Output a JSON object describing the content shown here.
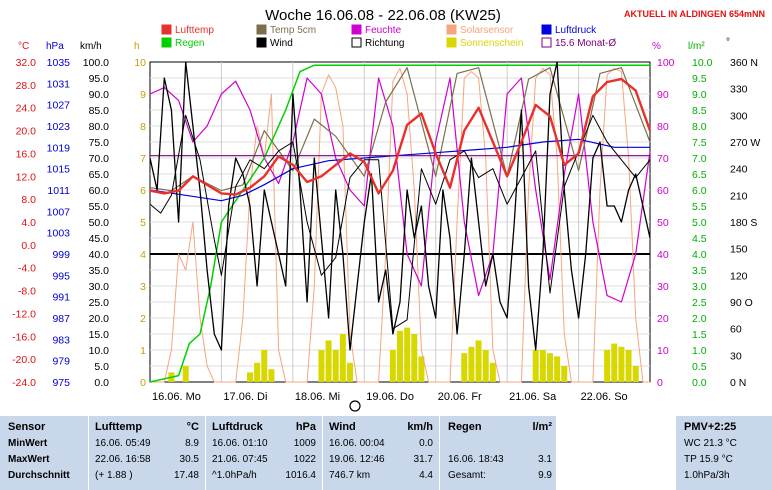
{
  "title": "Woche 16.06.08 - 22.06.08 (KW25)",
  "location_label": "AKTUELL IN ALDINGEN 654mNN",
  "axis_units": {
    "celsius": "°C",
    "hpa": "hPa",
    "kmh": "km/h",
    "h": "h",
    "percent": "%",
    "rain": "l/m²",
    "deg": "°"
  },
  "legend": [
    {
      "label": "Lufttemp",
      "color": "#e8302c",
      "style": "box"
    },
    {
      "label": "Temp 5cm",
      "color": "#7d6f4c",
      "style": "box"
    },
    {
      "label": "Feuchte",
      "color": "#d000d0",
      "style": "box"
    },
    {
      "label": "Solarsensor",
      "color": "#f6a57e",
      "style": "box"
    },
    {
      "label": "Luftdruck",
      "color": "#0000e0",
      "style": "box"
    },
    {
      "label": "Regen",
      "color": "#00d000",
      "style": "box"
    },
    {
      "label": "Wind",
      "color": "#000000",
      "style": "box"
    },
    {
      "label": "Richtung",
      "color": "#000000",
      "style": "outline"
    },
    {
      "label": "Sonnenschein",
      "color": "#d8d800",
      "style": "box"
    },
    {
      "label": "15.6 Monat-Ø",
      "color": "#800080",
      "style": "outline"
    }
  ],
  "chart_data": {
    "type": "line",
    "x_ticks": [
      "16.06. Mo",
      "17.06. Di",
      "18.06. Mi",
      "19.06. Do",
      "20.06. Fr",
      "21.06. Sa",
      "22.06. So"
    ],
    "axes": {
      "temp_c": {
        "min": -24,
        "max": 32,
        "ticks": [
          "32.0",
          "28.0",
          "24.0",
          "20.0",
          "16.0",
          "12.0",
          "8.0",
          "4.0",
          "0.0",
          "-4.0",
          "-8.0",
          "-12.0",
          "-16.0",
          "-20.0",
          "-24.0"
        ]
      },
      "pressure_hpa": {
        "min": 975,
        "max": 1035,
        "ticks": [
          "1035",
          "1031",
          "1027",
          "1023",
          "1019",
          "1015",
          "1011",
          "1007",
          "1003",
          "999",
          "995",
          "991",
          "987",
          "983",
          "979",
          "975"
        ]
      },
      "wind_kmh": {
        "min": 0,
        "max": 100,
        "ticks": [
          "100.0",
          "95.0",
          "90.0",
          "85.0",
          "80.0",
          "75.0",
          "70.0",
          "65.0",
          "60.0",
          "55.0",
          "50.0",
          "45.0",
          "40.0",
          "35.0",
          "30.0",
          "25.0",
          "20.0",
          "15.0",
          "10.0",
          "5.0",
          "0.0"
        ]
      },
      "sun_h": {
        "min": 0,
        "max": 10,
        "ticks": [
          "10",
          "9",
          "8",
          "7",
          "6",
          "5",
          "4",
          "3",
          "2",
          "1",
          "0"
        ]
      },
      "humidity_pct": {
        "min": 0,
        "max": 100,
        "ticks": [
          "100",
          "90",
          "80",
          "70",
          "60",
          "50",
          "40",
          "30",
          "20",
          "10",
          "0"
        ]
      },
      "rain_lm2": {
        "min": 0,
        "max": 10,
        "ticks": [
          "10.0",
          "9.5",
          "9.0",
          "8.5",
          "8.0",
          "7.5",
          "7.0",
          "6.5",
          "6.0",
          "5.5",
          "5.0",
          "4.5",
          "4.0",
          "3.5",
          "3.0",
          "2.5",
          "2.0",
          "1.5",
          "1.0",
          "0.5",
          "0.0"
        ]
      },
      "direction_deg": {
        "min": 0,
        "max": 360,
        "ticks": [
          "360 N",
          "330",
          "300",
          "270 W",
          "240",
          "210",
          "180 S",
          "150",
          "120",
          "90 O",
          "60",
          "30",
          "0 N"
        ]
      }
    },
    "series": [
      {
        "name": "Lufttemp",
        "axis": "temp_c",
        "color": "#e8302c",
        "x": [
          0,
          0.2,
          0.4,
          0.6,
          0.8,
          1,
          1.2,
          1.4,
          1.6,
          1.8,
          2,
          2.2,
          2.4,
          2.6,
          2.8,
          3,
          3.2,
          3.4,
          3.6,
          3.8,
          4,
          4.2,
          4.4,
          4.6,
          4.8,
          5,
          5.2,
          5.4,
          5.6,
          5.8,
          6,
          6.2,
          6.4,
          6.6,
          6.8,
          7
        ],
        "values": [
          9.5,
          9,
          9.5,
          12,
          10.5,
          9,
          8.8,
          10,
          12,
          15.5,
          14,
          11,
          12,
          14,
          16,
          14.5,
          9,
          13,
          21,
          23,
          16,
          10,
          20,
          24,
          18,
          12,
          18,
          24.5,
          22.5,
          14,
          16,
          26,
          28.5,
          29,
          27,
          20
        ]
      },
      {
        "name": "Temp 5cm",
        "axis": "temp_c",
        "color": "#7d6f4c",
        "x": [
          0,
          0.3,
          0.6,
          1,
          1.3,
          1.6,
          2,
          2.3,
          2.6,
          3,
          3.3,
          3.6,
          4,
          4.3,
          4.6,
          5,
          5.3,
          5.6,
          6,
          6.3,
          6.6,
          7
        ],
        "values": [
          10,
          9.5,
          12,
          9.5,
          10.5,
          20,
          13,
          22,
          19,
          12,
          25,
          31,
          12,
          30,
          31,
          12,
          29,
          31,
          13,
          30,
          31,
          18
        ]
      },
      {
        "name": "Feuchte",
        "axis": "humidity_pct",
        "color": "#d000d0",
        "x": [
          0,
          0.2,
          0.4,
          0.6,
          0.8,
          1,
          1.2,
          1.4,
          1.6,
          1.8,
          2,
          2.2,
          2.4,
          2.6,
          2.8,
          3,
          3.2,
          3.4,
          3.6,
          3.8,
          4,
          4.2,
          4.4,
          4.6,
          4.8,
          5,
          5.2,
          5.4,
          5.6,
          5.8,
          6,
          6.2,
          6.4,
          6.6,
          6.8,
          7
        ],
        "values": [
          90,
          92,
          88,
          75,
          80,
          90,
          94,
          85,
          70,
          62,
          75,
          95,
          90,
          70,
          60,
          55,
          95,
          80,
          40,
          30,
          75,
          95,
          50,
          27,
          40,
          90,
          95,
          60,
          32,
          65,
          90,
          50,
          27,
          25,
          40,
          72
        ]
      },
      {
        "name": "Solarsensor",
        "axis": "humidity_pct",
        "color": "#f6a57e",
        "x": [
          0,
          0.1,
          0.2,
          0.3,
          0.4,
          0.5,
          0.6,
          0.7,
          0.8,
          0.9,
          1,
          1.1,
          1.2,
          1.3,
          1.4,
          1.5,
          1.6,
          1.7,
          1.8,
          1.9,
          2,
          2.1,
          2.2,
          2.3,
          2.4,
          2.5,
          2.6,
          2.7,
          2.8,
          2.9,
          3,
          3.1,
          3.2,
          3.3,
          3.4,
          3.5,
          3.6,
          3.7,
          3.8,
          3.9,
          4,
          4.1,
          4.2,
          4.3,
          4.4,
          4.5,
          4.6,
          4.7,
          4.8,
          4.9,
          5,
          5.1,
          5.2,
          5.3,
          5.4,
          5.5,
          5.6,
          5.7,
          5.8,
          5.9,
          6,
          6.1,
          6.2,
          6.3,
          6.4,
          6.5,
          6.6,
          6.7,
          6.8,
          6.9,
          7
        ],
        "values": [
          0,
          0,
          0,
          10,
          40,
          35,
          50,
          20,
          5,
          0,
          0,
          0,
          0,
          20,
          60,
          80,
          70,
          90,
          10,
          0,
          0,
          0,
          0,
          30,
          90,
          96,
          92,
          80,
          15,
          0,
          0,
          0,
          0,
          40,
          94,
          98,
          90,
          60,
          10,
          0,
          0,
          0,
          0,
          50,
          95,
          97,
          95,
          70,
          10,
          0,
          0,
          0,
          0,
          60,
          95,
          98,
          96,
          70,
          15,
          0,
          0,
          0,
          0,
          60,
          96,
          98,
          97,
          70,
          20,
          0,
          0
        ]
      },
      {
        "name": "Luftdruck",
        "axis": "pressure_hpa",
        "color": "#0000e0",
        "x": [
          0,
          0.5,
          1,
          1.3,
          1.6,
          2,
          2.5,
          3,
          3.5,
          4,
          4.5,
          5,
          5.5,
          6,
          6.5,
          7
        ],
        "values": [
          1011,
          1010,
          1009,
          1010,
          1012,
          1015,
          1016.5,
          1017,
          1017.5,
          1018,
          1018.5,
          1019,
          1020,
          1020.5,
          1019,
          1019
        ]
      },
      {
        "name": "Regen",
        "axis": "rain_lm2",
        "color": "#00d000",
        "x": [
          0,
          0.2,
          0.4,
          0.55,
          0.7,
          0.85,
          1.0,
          1.3,
          1.6,
          1.9,
          2.1,
          2.3,
          3,
          4,
          5,
          6,
          7
        ],
        "values": [
          0,
          0.1,
          0.2,
          1.2,
          1.5,
          3,
          5,
          6,
          7,
          8.5,
          9.7,
          9.9,
          9.9,
          9.9,
          9.9,
          9.9,
          9.9
        ]
      },
      {
        "name": "Wind",
        "axis": "wind_kmh",
        "color": "#000000",
        "x": [
          0,
          0.1,
          0.2,
          0.3,
          0.4,
          0.5,
          0.6,
          0.7,
          0.8,
          0.9,
          1,
          1.1,
          1.2,
          1.3,
          1.4,
          1.5,
          1.6,
          1.7,
          1.8,
          1.9,
          2,
          2.1,
          2.2,
          2.3,
          2.4,
          2.5,
          2.6,
          2.7,
          2.8,
          2.9,
          3,
          3.1,
          3.2,
          3.3,
          3.4,
          3.5,
          3.6,
          3.7,
          3.8,
          3.9,
          4,
          4.1,
          4.2,
          4.3,
          4.4,
          4.5,
          4.6,
          4.7,
          4.8,
          4.9,
          5,
          5.1,
          5.2,
          5.3,
          5.4,
          5.5,
          5.6,
          5.7,
          5.8,
          5.9,
          6,
          6.1,
          6.2,
          6.3,
          6.4,
          6.5,
          6.6,
          6.7,
          6.8,
          6.9,
          7
        ],
        "values": [
          70,
          60,
          95,
          85,
          50,
          100,
          80,
          60,
          35,
          15,
          10,
          55,
          70,
          65,
          55,
          30,
          60,
          50,
          40,
          30,
          90,
          60,
          25,
          70,
          45,
          20,
          60,
          40,
          10,
          30,
          50,
          65,
          25,
          35,
          15,
          25,
          60,
          45,
          55,
          30,
          20,
          60,
          45,
          15,
          40,
          70,
          50,
          30,
          40,
          25,
          20,
          50,
          85,
          30,
          10,
          40,
          90,
          100,
          60,
          35,
          20,
          40,
          70,
          75,
          55,
          55,
          50,
          60,
          65,
          55,
          45
        ]
      },
      {
        "name": "Richtung",
        "axis": "direction_deg",
        "color": "#000000",
        "x": [
          0,
          0.15,
          0.3,
          0.5,
          0.7,
          0.9,
          1.0,
          1.2,
          1.4,
          1.6,
          1.8,
          2.0,
          2.2,
          2.4,
          2.6,
          2.8,
          3.0,
          3.2,
          3.4,
          3.6,
          3.8,
          4.0,
          4.2,
          4.4,
          4.6,
          4.8,
          5.0,
          5.2,
          5.4,
          5.6,
          5.8,
          6.0,
          6.2,
          6.4,
          6.6,
          6.8,
          7
        ],
        "values": [
          200,
          190,
          210,
          300,
          250,
          160,
          120,
          220,
          250,
          240,
          260,
          270,
          180,
          120,
          140,
          230,
          250,
          250,
          60,
          70,
          240,
          200,
          250,
          260,
          230,
          240,
          200,
          230,
          260,
          100,
          220,
          260,
          300,
          270,
          250,
          230,
          250
        ]
      },
      {
        "name": "15.6 Monat-Ø",
        "axis": "temp_c",
        "color": "#800080",
        "x": [
          0,
          7
        ],
        "values": [
          15.6,
          15.6
        ]
      }
    ],
    "sunshine_bars": {
      "name": "Sonnenschein",
      "axis": "sun_h",
      "color": "#d8d800",
      "x": [
        0.3,
        0.5,
        1.4,
        1.5,
        1.6,
        1.7,
        2.4,
        2.5,
        2.6,
        2.7,
        2.8,
        3.4,
        3.5,
        3.6,
        3.7,
        3.8,
        4.4,
        4.5,
        4.6,
        4.7,
        4.8,
        5.4,
        5.5,
        5.6,
        5.7,
        5.8,
        6.4,
        6.5,
        6.6,
        6.7,
        6.8
      ],
      "values": [
        0.3,
        0.5,
        0.3,
        0.6,
        1.0,
        0.4,
        1.0,
        1.3,
        1.0,
        1.5,
        0.6,
        1.0,
        1.6,
        1.7,
        1.5,
        0.8,
        0.9,
        1.1,
        1.3,
        1.0,
        0.6,
        1.0,
        1.0,
        0.9,
        0.8,
        0.5,
        1.0,
        1.2,
        1.1,
        1.0,
        0.5
      ]
    },
    "reference_line": {
      "axis": "wind_kmh",
      "value": 40,
      "color": "#000000"
    },
    "grid": true
  },
  "table": {
    "sensor": {
      "header": "Sensor",
      "rows": [
        "MinWert",
        "MaxWert",
        "Durchschnitt"
      ]
    },
    "lufttemp": {
      "header": "Lufttemp",
      "unit": "°C",
      "rows": [
        [
          "16.06.  05:49",
          "8.9"
        ],
        [
          "22.06.  16:58",
          "30.5"
        ],
        [
          "(+ 1.88 )",
          "17.48"
        ]
      ]
    },
    "luftdruck": {
      "header": "Luftdruck",
      "unit": "hPa",
      "rows": [
        [
          "16.06.  01:10",
          "1009"
        ],
        [
          "21.06.  07:45",
          "1022"
        ],
        [
          "^1.0hPa/h",
          "1016.4"
        ]
      ]
    },
    "wind": {
      "header": "Wind",
      "unit": "km/h",
      "rows": [
        [
          "16.06.  00:04",
          "0.0"
        ],
        [
          "19.06.  12:46",
          "31.7"
        ],
        [
          "746.7 km",
          "4.4"
        ]
      ]
    },
    "regen": {
      "header": "Regen",
      "unit": "l/m²",
      "rows": [
        [
          "16.06.  18:43",
          "3.1"
        ],
        [
          "Gesamt:",
          "9.9"
        ]
      ]
    },
    "pmv": {
      "header": "PMV+2:25",
      "rows": [
        "WC 21.3 °C",
        "TP 15.9 °C",
        "1.0hPa/3h"
      ]
    }
  }
}
